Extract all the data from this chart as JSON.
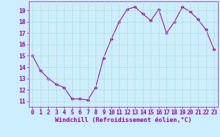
{
  "x": [
    0,
    1,
    2,
    3,
    4,
    5,
    6,
    7,
    8,
    9,
    10,
    11,
    12,
    13,
    14,
    15,
    16,
    17,
    18,
    19,
    20,
    21,
    22,
    23
  ],
  "y": [
    15.0,
    13.7,
    13.0,
    12.5,
    12.2,
    11.2,
    11.2,
    11.1,
    12.2,
    14.8,
    16.5,
    18.0,
    19.1,
    19.3,
    18.7,
    18.1,
    19.1,
    17.0,
    18.0,
    19.3,
    18.9,
    18.2,
    17.3,
    15.6
  ],
  "line_color": "#990099",
  "marker": "D",
  "marker_size": 2.2,
  "background_color": "#cceeff",
  "grid_color": "#aaddcc",
  "xlabel": "Windchill (Refroidissement éolien,°C)",
  "xlabel_color": "#990099",
  "xlabel_fontsize": 6.5,
  "tick_color": "#990099",
  "tick_fontsize": 6,
  "ylim": [
    10.5,
    19.8
  ],
  "xlim": [
    -0.5,
    23.5
  ],
  "yticks": [
    11,
    12,
    13,
    14,
    15,
    16,
    17,
    18,
    19
  ],
  "xticks": [
    0,
    1,
    2,
    3,
    4,
    5,
    6,
    7,
    8,
    9,
    10,
    11,
    12,
    13,
    14,
    15,
    16,
    17,
    18,
    19,
    20,
    21,
    22,
    23
  ]
}
